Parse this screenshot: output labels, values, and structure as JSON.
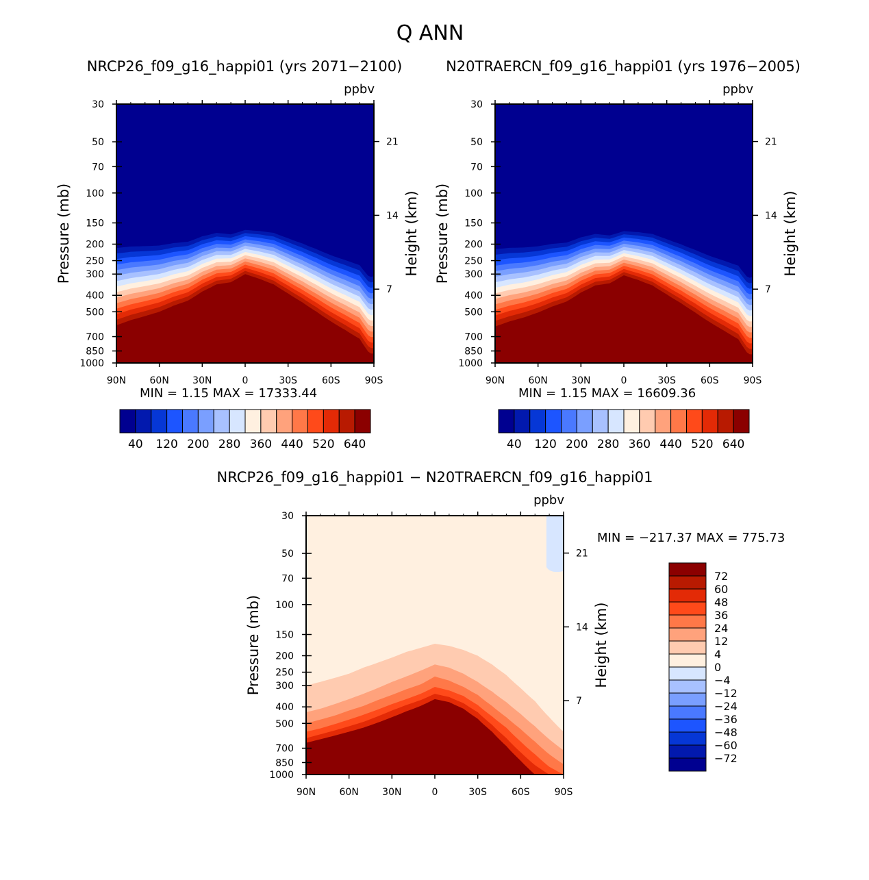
{
  "figure": {
    "title": "Q ANN",
    "left_title": "NRCP26_f09_g16_happi01 (yrs 2071−2100)",
    "right_title": "N20TRAERCN_f09_g16_happi01 (yrs 1976−2005)",
    "diff_title": "NRCP26_f09_g16_happi01 − N20TRAERCN_f09_g16_happi01",
    "units": "ppbv",
    "ylabel_left": "Pressure (mb)",
    "ylabel_right": "Height (km)",
    "min_label": "MIN =",
    "max_label": "MAX ="
  },
  "chart_data": [
    {
      "type": "heatmap",
      "id": "left",
      "title": "NRCP26_f09_g16_happi01 (yrs 2071−2100)",
      "units": "ppbv",
      "ylabel": "Pressure (mb)",
      "ylabel_right": "Height (km)",
      "x_ticks": [
        "90N",
        "60N",
        "30N",
        "0",
        "30S",
        "60S",
        "90S"
      ],
      "y_ticks": [
        "30",
        "50",
        "70",
        "100",
        "150",
        "200",
        "250",
        "300",
        "400",
        "500",
        "700",
        "850",
        "1000"
      ],
      "y_right_ticks": [
        "21",
        "14",
        "7"
      ],
      "min": "1.15",
      "max": "17333.44",
      "colorbar_labels": [
        "40",
        "120",
        "200",
        "280",
        "360",
        "440",
        "520",
        "640"
      ],
      "colors": [
        "#000090",
        "#0219ae",
        "#0637d6",
        "#1d55ff",
        "#4a79ff",
        "#7a9fff",
        "#a8c1ff",
        "#d7e6ff",
        "#fff0e0",
        "#ffcbb0",
        "#ffa27c",
        "#ff7848",
        "#ff4a1a",
        "#e32a06",
        "#b81a01",
        "#8b0000"
      ],
      "transition_lat": [
        -90,
        -80,
        -70,
        -60,
        -50,
        -40,
        -30,
        -20,
        -10,
        0,
        10,
        20,
        30,
        40,
        50,
        60,
        70,
        80,
        87
      ],
      "transition_p": [
        600,
        560,
        530,
        500,
        460,
        430,
        380,
        345,
        335,
        300,
        320,
        345,
        390,
        440,
        500,
        570,
        640,
        720,
        880
      ]
    },
    {
      "type": "heatmap",
      "id": "right",
      "title": "N20TRAERCN_f09_g16_happi01 (yrs 1976−2005)",
      "units": "ppbv",
      "ylabel": "Pressure (mb)",
      "ylabel_right": "Height (km)",
      "x_ticks": [
        "90N",
        "60N",
        "30N",
        "0",
        "30S",
        "60S",
        "90S"
      ],
      "y_ticks": [
        "30",
        "50",
        "70",
        "100",
        "150",
        "200",
        "250",
        "300",
        "400",
        "500",
        "700",
        "850",
        "1000"
      ],
      "y_right_ticks": [
        "21",
        "14",
        "7"
      ],
      "min": "1.15",
      "max": "16609.36",
      "colorbar_labels": [
        "40",
        "120",
        "200",
        "280",
        "360",
        "440",
        "520",
        "640"
      ],
      "colors": [
        "#000090",
        "#0219ae",
        "#0637d6",
        "#1d55ff",
        "#4a79ff",
        "#7a9fff",
        "#a8c1ff",
        "#d7e6ff",
        "#fff0e0",
        "#ffcbb0",
        "#ffa27c",
        "#ff7848",
        "#ff4a1a",
        "#e32a06",
        "#b81a01",
        "#8b0000"
      ],
      "transition_lat": [
        -90,
        -80,
        -70,
        -60,
        -50,
        -40,
        -30,
        -20,
        -10,
        0,
        10,
        20,
        30,
        40,
        50,
        60,
        70,
        80,
        87
      ],
      "transition_p": [
        610,
        570,
        540,
        505,
        465,
        435,
        385,
        350,
        340,
        305,
        325,
        350,
        395,
        445,
        505,
        575,
        645,
        725,
        890
      ]
    },
    {
      "type": "heatmap",
      "id": "diff",
      "title": "NRCP26_f09_g16_happi01 − N20TRAERCN_f09_g16_happi01",
      "units": "ppbv",
      "ylabel": "Pressure (mb)",
      "ylabel_right": "Height (km)",
      "x_ticks": [
        "90N",
        "60N",
        "30N",
        "0",
        "30S",
        "60S",
        "90S"
      ],
      "y_ticks": [
        "30",
        "50",
        "70",
        "100",
        "150",
        "200",
        "250",
        "300",
        "400",
        "500",
        "700",
        "850",
        "1000"
      ],
      "y_right_ticks": [
        "21",
        "14",
        "7"
      ],
      "min": "−217.37",
      "max": "775.73",
      "colorbar_labels": [
        "72",
        "60",
        "48",
        "36",
        "24",
        "12",
        "4",
        "0",
        "−4",
        "−12",
        "−24",
        "−36",
        "−48",
        "−60",
        "−72"
      ],
      "colors": [
        "#8b0000",
        "#b81a01",
        "#e32a06",
        "#ff4a1a",
        "#ff7848",
        "#ffa27c",
        "#ffcbb0",
        "#fff0e0",
        "#fff0e0",
        "#d7e6ff",
        "#a8c1ff",
        "#7a9fff",
        "#4a79ff",
        "#1d55ff",
        "#0637d6",
        "#0219ae",
        "#000090"
      ],
      "layers": [
        {
          "color": "#ffcbb0",
          "p": [
            300,
            285,
            270,
            255,
            235,
            220,
            205,
            190,
            180,
            170,
            175,
            185,
            200,
            225,
            260,
            310,
            370,
            460,
            560
          ]
        },
        {
          "color": "#ffa27c",
          "p": [
            430,
            410,
            385,
            360,
            335,
            310,
            285,
            265,
            245,
            225,
            235,
            255,
            285,
            325,
            375,
            440,
            520,
            620,
            720
          ]
        },
        {
          "color": "#ff7848",
          "p": [
            500,
            475,
            450,
            420,
            395,
            365,
            340,
            315,
            295,
            265,
            280,
            305,
            340,
            395,
            460,
            540,
            640,
            760,
            870
          ]
        },
        {
          "color": "#ff4a1a",
          "p": [
            560,
            535,
            505,
            475,
            445,
            415,
            385,
            360,
            335,
            305,
            320,
            345,
            390,
            455,
            530,
            640,
            760,
            900,
            1000
          ]
        },
        {
          "color": "#e32a06",
          "p": [
            610,
            580,
            550,
            520,
            490,
            455,
            420,
            390,
            365,
            335,
            350,
            380,
            430,
            510,
            610,
            740,
            880,
            1000,
            1000
          ]
        },
        {
          "color": "#8b0000",
          "p": [
            650,
            620,
            590,
            560,
            530,
            495,
            460,
            425,
            395,
            360,
            375,
            410,
            470,
            560,
            680,
            830,
            1000,
            1000,
            1000
          ]
        }
      ],
      "layer_lat": [
        -90,
        -80,
        -70,
        -60,
        -50,
        -40,
        -30,
        -20,
        -10,
        0,
        10,
        20,
        30,
        40,
        50,
        60,
        70,
        80,
        90
      ]
    }
  ]
}
